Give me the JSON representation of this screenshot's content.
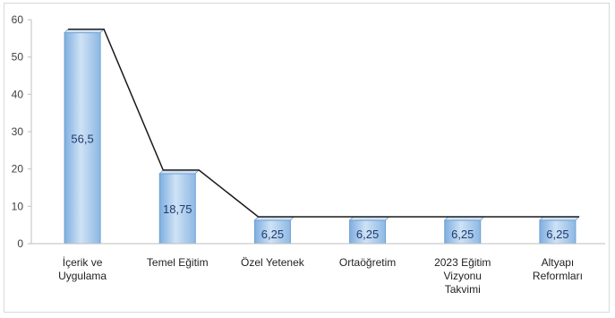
{
  "chart_data": {
    "type": "bar",
    "categories": [
      [
        "İçerik ve",
        "Uygulama"
      ],
      [
        "Temel Eğitim"
      ],
      [
        "Özel Yetenek"
      ],
      [
        "Ortaöğretim"
      ],
      [
        "2023 Eğitim",
        "Vizyonu",
        "Takvimi"
      ],
      [
        "Altyapı",
        "Reformları"
      ]
    ],
    "values": [
      56.5,
      18.75,
      6.25,
      6.25,
      6.25,
      6.25
    ],
    "value_labels": [
      "56,5",
      "18,75",
      "6,25",
      "6,25",
      "6,25",
      "6,25"
    ],
    "ylim": [
      0,
      60
    ],
    "yticks": [
      0,
      10,
      20,
      30,
      40,
      50,
      60
    ],
    "grid": false,
    "overlay_line": true,
    "colors": {
      "bar": "#9dc3e6",
      "bar_dark": "#6f9fd0",
      "bar_light": "#cfe2f5",
      "line": "#1a1a1a",
      "axis": "#bfbfbf"
    }
  }
}
